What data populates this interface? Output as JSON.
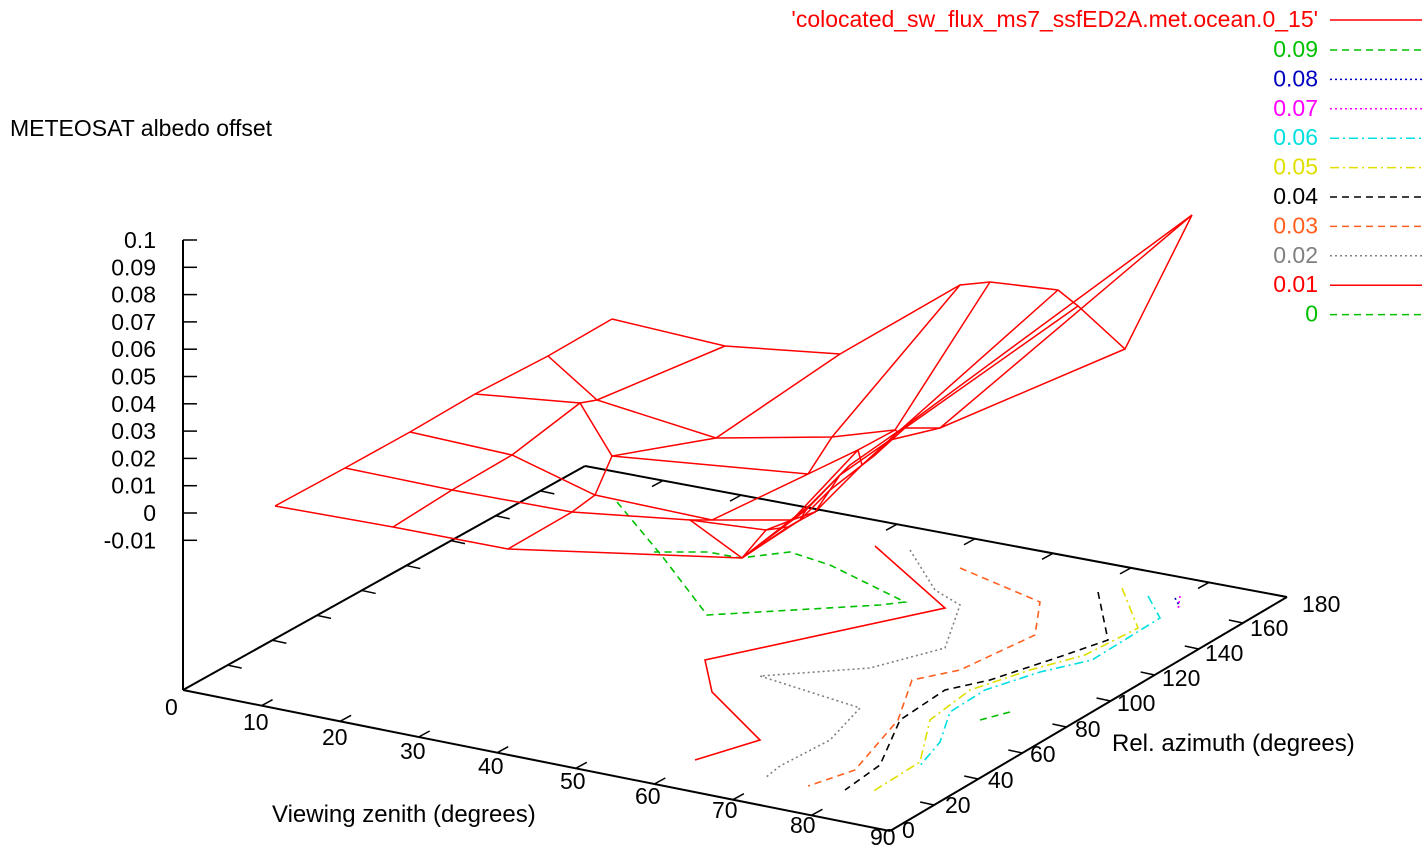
{
  "chart_data": {
    "type": "surface3d",
    "title": "",
    "zlabel": "METEOSAT albedo offset",
    "xlabel": "Viewing zenith (degrees)",
    "ylabel": "Rel. azimuth (degrees)",
    "x_ticks": [
      "0",
      "10",
      "20",
      "30",
      "40",
      "50",
      "60",
      "70",
      "80",
      "90"
    ],
    "y_ticks": [
      "0",
      "20",
      "40",
      "60",
      "80",
      "100",
      "120",
      "140",
      "160",
      "180"
    ],
    "z_ticks": [
      "0.1",
      "0.09",
      "0.08",
      "0.07",
      "0.06",
      "0.05",
      "0.04",
      "0.03",
      "0.02",
      "0.01",
      "0",
      "-0.01"
    ],
    "xlim": [
      0,
      90
    ],
    "ylim": [
      0,
      180
    ],
    "zlim": [
      -0.01,
      0.1
    ],
    "legend_placement": "top-right",
    "surface_series": {
      "name": "'colocated_sw_flux_ms7_ssfED2A.met.ocean.0_15'",
      "color": "#ff0000",
      "style": "solid"
    },
    "contour_levels": [
      {
        "label": "0.09",
        "color": "#00c000",
        "style": "dashed"
      },
      {
        "label": "0.08",
        "color": "#0000c0",
        "style": "dotted"
      },
      {
        "label": "0.07",
        "color": "#ff00ff",
        "style": "dotted"
      },
      {
        "label": "0.06",
        "color": "#00e0e0",
        "style": "dashdot"
      },
      {
        "label": "0.05",
        "color": "#e0e000",
        "style": "dashdot"
      },
      {
        "label": "0.04",
        "color": "#000000",
        "style": "dashed"
      },
      {
        "label": "0.03",
        "color": "#ff6020",
        "style": "dashed"
      },
      {
        "label": "0.02",
        "color": "#808080",
        "style": "dotted"
      },
      {
        "label": "0.01",
        "color": "#ff0000",
        "style": "solid"
      },
      {
        "label": "0",
        "color": "#00c000",
        "style": "dashed"
      }
    ]
  }
}
